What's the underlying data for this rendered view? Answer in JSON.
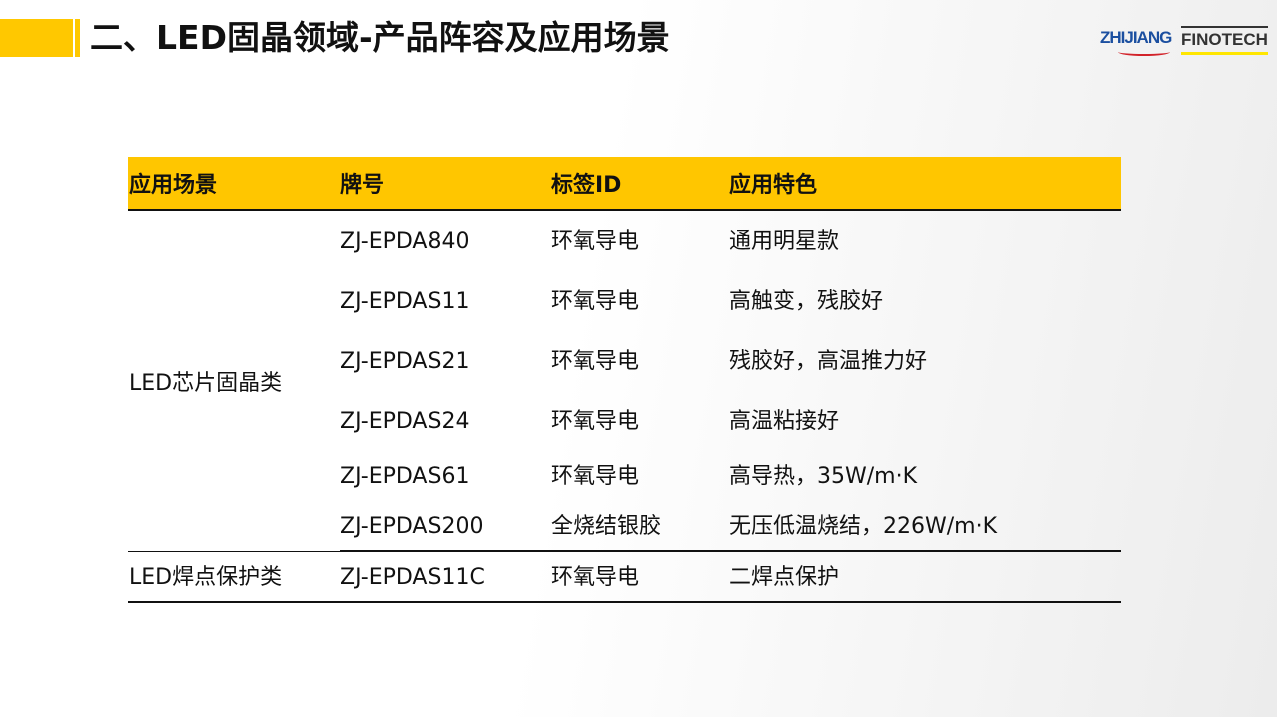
{
  "header": {
    "title": "二、LED固晶领域-产品阵容及应用场景",
    "logos": [
      "ZHIJIANG",
      "FINOTECH"
    ],
    "accent_color": "#ffc800"
  },
  "table": {
    "columns": [
      "应用场景",
      "牌号",
      "标签ID",
      "应用特色"
    ],
    "groups": [
      {
        "scene": "LED芯片固晶类",
        "rows": [
          {
            "grade": "ZJ-EPDA840",
            "tag": "环氧导电",
            "feature": "通用明星款"
          },
          {
            "grade": "ZJ-EPDAS11",
            "tag": "环氧导电",
            "feature": "高触变，残胶好"
          },
          {
            "grade": "ZJ-EPDAS21",
            "tag": "环氧导电",
            "feature": "残胶好，高温推力好"
          },
          {
            "grade": "ZJ-EPDAS24",
            "tag": "环氧导电",
            "feature": "高温粘接好"
          },
          {
            "grade": "ZJ-EPDAS61",
            "tag": "环氧导电",
            "feature": "高导热，35W/m·K"
          },
          {
            "grade": "ZJ-EPDAS200",
            "tag": "全烧结银胶",
            "feature": "无压低温烧结，226W/m·K"
          }
        ]
      },
      {
        "scene": "LED焊点保护类",
        "rows": [
          {
            "grade": "ZJ-EPDAS11C",
            "tag": "环氧导电",
            "feature": "二焊点保护"
          }
        ]
      }
    ]
  }
}
